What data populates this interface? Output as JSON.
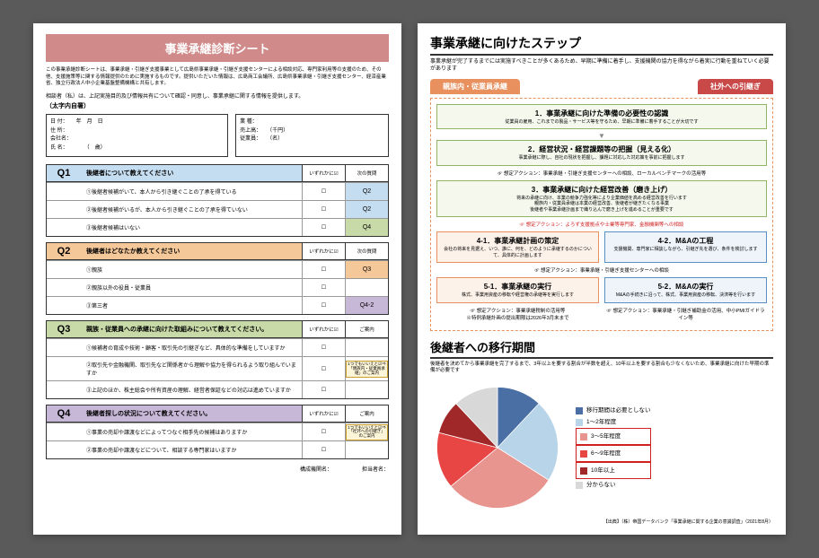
{
  "page1": {
    "title": "事業承継診断シート",
    "intro": "この事業承継診断シートは、事業承継・引継ぎ支援事業として広島県事業承継・引継ぎ支援センターによる相談対応、専門家利用等の支援のため、その他、支援施策等に関する情報提供のために実施するものです。提供いただいた情報は、広島商工会議所、広島県事業承継・引継ぎ支援センター、経済産業省、独立行政法人中小企業基盤整備機構と共有します。",
    "sub_intro": "相談者（私）は、上記実施目的及び情報共有について確認・同意し、事業承継に関する情報を提供します。",
    "bold_note": "（太字内自署）",
    "info_left": "日 付：　　年　月　日\n住 所：\n会社名：\n氏 名：　　　　（　歳）",
    "info_right": "業 種：\n売上高：　　（千円）\n従業員：　　（名）",
    "q1": {
      "title": "後継者について教えてください",
      "col1": "いずれかに☑",
      "col2": "次の質問",
      "rows": [
        {
          "t": "①後継者候補がいて、本人から引き継ぐことの了承を得ている",
          "n": "Q2",
          "c": "next-q2"
        },
        {
          "t": "②後継者候補がいるが、本人から引き継ぐことの了承を得ていない",
          "n": "Q2",
          "c": "next-q2"
        },
        {
          "t": "③後継者候補はいない",
          "n": "Q4",
          "c": "next-q4"
        }
      ]
    },
    "q2": {
      "title": "後継者はどなたか教えてください",
      "col1": "いずれかに☑",
      "col2": "次の質問",
      "rows": [
        {
          "t": "①親族",
          "n": "Q3",
          "c": "next-q3",
          "span": 2
        },
        {
          "t": "②親族以外の役員・従業員",
          "n": "",
          "c": ""
        },
        {
          "t": "③第三者",
          "n": "Q4-2",
          "c": "next-q42"
        }
      ]
    },
    "q3": {
      "title": "親族・従業員への承継に向けた取組みについて教えてください。",
      "col1": "いずれかに☑",
      "col2": "ご案内",
      "rows": [
        {
          "t": "①候補者の育成や技術・顧客・取引先の引継ぎなど、具体的な準備をしていますか",
          "g": ""
        },
        {
          "t": "②取引先や金融機関、取引先など関係者から理解や協力を得られるよう取り組んでいますか",
          "g": "1つでもいいえと☑⇒「親族内・従業員承継」のご案内"
        },
        {
          "t": "③上記のほか、株主総会や所有資産の理解、経営者保証などの対応は進めていますか",
          "g": ""
        }
      ]
    },
    "q4": {
      "title": "後継者探しの状況について教えてください。",
      "col1": "いずれかに☑",
      "col2": "ご案内",
      "rows": [
        {
          "t": "①事業の売却や譲渡などによってつなぐ相手先の候補はありますか",
          "g": "1つでもいいえと☑⇒「社外への引継ぎ」のご案内"
        },
        {
          "t": "②事業の売却や譲渡などについて、相談する専門家はいますか",
          "g": ""
        }
      ]
    },
    "footer": "構成機関名：　　　　　　担当者名："
  },
  "page2": {
    "title": "事業承継に向けたステップ",
    "sub": "事業承継が完了するまでには実施すべきことが多くあるため、早期に準備に着手し、支援機関の協力を得ながら着実に行動を重ねていく必要があります",
    "tab_l": "親族内・従業員承継",
    "tab_r": "社外への引継ぎ",
    "s1": {
      "t": "1．事業承継に向けた準備の必要性の認識",
      "d": "従業員の雇用、これまでの製品・サービス等を守るため、早期に準備に着手することが大切です"
    },
    "s2": {
      "t": "2．経営状況・経営課題等の把握（見える化）",
      "d": "事業承継に際し、自社の現状を把握し、課題に対応した対応策を事前に把握します"
    },
    "a2": "☞ 想定アクション：事業承継・引継ぎ支援センターへの相談、ローカルベンチマークの活用等",
    "s3": {
      "t": "3．事業承継に向けた経営改善（磨き上げ）",
      "d": "将来の承継に向け、本業の競争力強化等により企業価値を高める経営改善を行います\n親族内・従業員承継は本業の経営改善、後継者が継ぎたくなる事業\n後継者や事業承継計画まで織り込んで磨き上げを進めることが重要です"
    },
    "a3": "☞ 想定アクション：よろず支援拠点や士業等専門家、金融機関等への相談",
    "s41": {
      "t": "4-1．事業承継計画の策定",
      "d": "会社の将来を見据え、いつ、誰に、何を、どのように承継するのかについて、具体的に計画します"
    },
    "s42": {
      "t": "4-2．M&Aの工程",
      "d": "支援機関、専門家に相談しながら、引継ぎ先を選び、条件を検討します"
    },
    "a4": "☞ 想定アクション：事業承継・引継ぎ支援センターへの相談",
    "s51": {
      "t": "5-1．事業承継の実行",
      "d": "株式、事業用資産の移転や経営権の承継等を実行します"
    },
    "s52": {
      "t": "5-2．M&Aの実行",
      "d": "M&Aの手続きに沿って、株式、事業用資産の移転、決済等を行います"
    },
    "a5l": "☞ 想定アクション：事業承継税制の活用等\n※特例承継計画の提出期限は2026年3月末まで",
    "a5r": "☞ 想定アクション：事業承継・引継ぎ補助金の活用、中小PMIガイドライン等",
    "chart_title": "後継者への移行期間",
    "chart_sub": "後継者を決めてから事業承継を完了するまで、3年以上を要する割合が半数を超え、10年以上を要する割合も少なくないため、事業承継に向けた早期の準備が必要です",
    "legend": [
      {
        "l": "移行期間は必要としない",
        "c": "#4a6fa5"
      },
      {
        "l": "1～2年程度",
        "c": "#b8d4e8"
      },
      {
        "l": "3～5年程度",
        "c": "#e89590"
      },
      {
        "l": "6～9年程度",
        "c": "#e84545"
      },
      {
        "l": "10年以上",
        "c": "#a02828"
      },
      {
        "l": "分からない",
        "c": "#d8d8d8"
      }
    ],
    "pie": [
      {
        "v": 12,
        "c": "#4a6fa5"
      },
      {
        "v": 22,
        "c": "#b8d4e8"
      },
      {
        "v": 30,
        "c": "#e89590"
      },
      {
        "v": 15,
        "c": "#e84545"
      },
      {
        "v": 9,
        "c": "#a02828"
      },
      {
        "v": 12,
        "c": "#d8d8d8"
      }
    ],
    "source": "【出典】（株）帝国データバンク「事業承継に関する企業の意識調査」（2021年8月）"
  }
}
